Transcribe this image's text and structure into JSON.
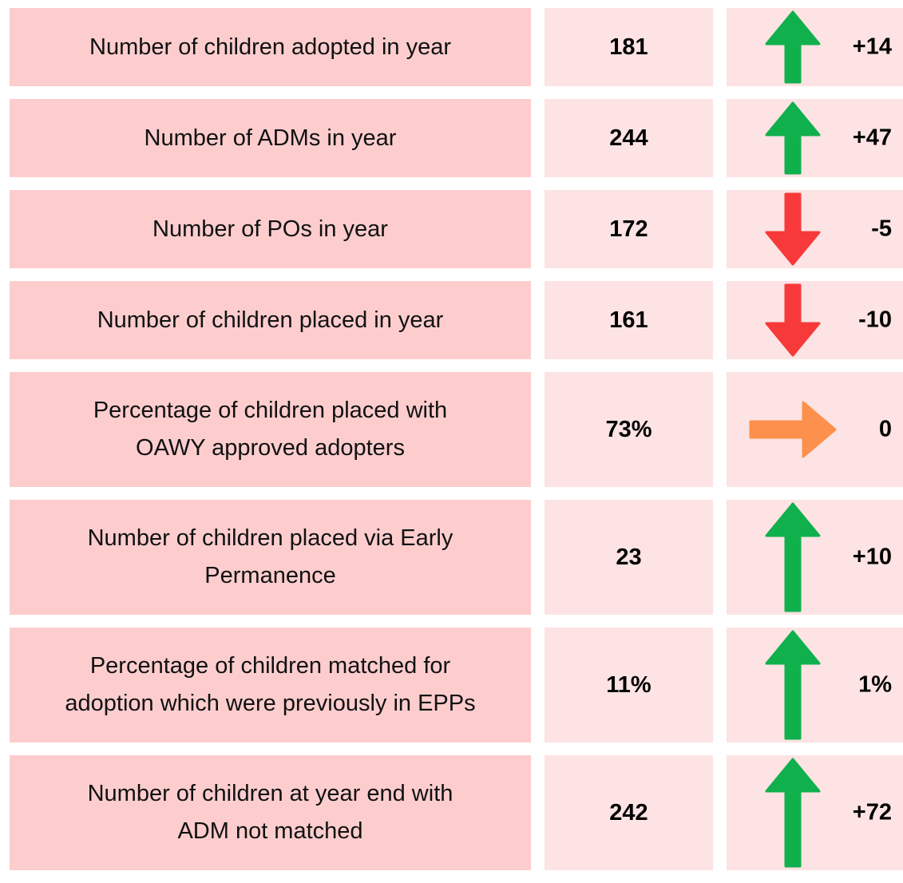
{
  "arrow_colors": {
    "up": "#10b04d",
    "down": "#f7393a",
    "flat": "#fd904c"
  },
  "rows": [
    {
      "label": [
        "Number of children adopted in year"
      ],
      "value": "181",
      "arrow": "up",
      "change": "+14"
    },
    {
      "label": [
        "Number of ADMs in year"
      ],
      "value": "244",
      "arrow": "up",
      "change": "+47"
    },
    {
      "label": [
        "Number of POs in year"
      ],
      "value": "172",
      "arrow": "down",
      "change": "-5"
    },
    {
      "label": [
        "Number of children placed in year"
      ],
      "value": "161",
      "arrow": "down",
      "change": "-10"
    },
    {
      "label": [
        "Percentage of children placed with",
        "OAWY approved adopters"
      ],
      "value": "73%",
      "arrow": "flat",
      "change": "0"
    },
    {
      "label": [
        "Number of children placed via Early",
        "Permanence"
      ],
      "value": "23",
      "arrow": "up",
      "change": "+10"
    },
    {
      "label": [
        "Percentage of children matched for",
        "adoption which were previously in EPPs"
      ],
      "value": "11%",
      "arrow": "up",
      "change": "1%"
    },
    {
      "label": [
        "Number of children at year end with",
        "ADM not matched"
      ],
      "value": "242",
      "arrow": "up",
      "change": "+72"
    }
  ]
}
